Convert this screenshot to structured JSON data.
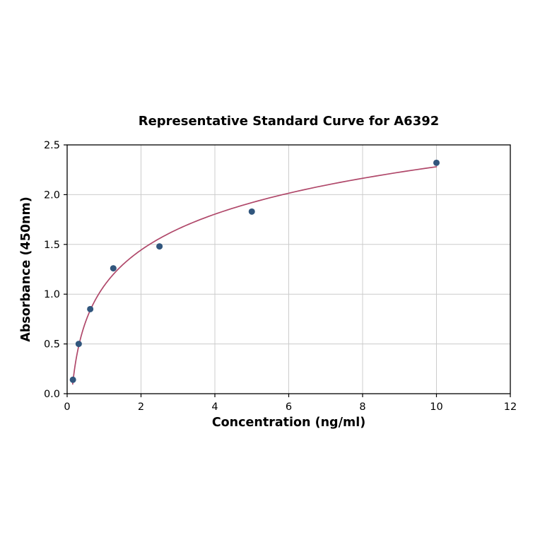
{
  "chart_data": {
    "type": "scatter",
    "title": "Representative Standard Curve for A6392",
    "xlabel": "Concentration (ng/ml)",
    "ylabel": "Absorbance (450nm)",
    "xlim": [
      0,
      12
    ],
    "ylim": [
      0,
      2.5
    ],
    "xticks": [
      0,
      2,
      4,
      6,
      8,
      10,
      12
    ],
    "yticks": [
      0.0,
      0.5,
      1.0,
      1.5,
      2.0,
      2.5
    ],
    "grid": true,
    "legend": "none",
    "points": [
      {
        "x": 0.156,
        "y": 0.14
      },
      {
        "x": 0.313,
        "y": 0.5
      },
      {
        "x": 0.625,
        "y": 0.85
      },
      {
        "x": 1.25,
        "y": 1.26
      },
      {
        "x": 2.5,
        "y": 1.48
      },
      {
        "x": 5,
        "y": 1.83
      },
      {
        "x": 10,
        "y": 2.32
      }
    ],
    "fit_curve": {
      "type": "log",
      "a": 1.083,
      "b": 0.52,
      "x_start": 0.15,
      "x_end": 10
    },
    "point_color": "#31567d",
    "curve_color": "#b0486a",
    "grid_color": "#cccccc",
    "axis_color": "#000000"
  }
}
